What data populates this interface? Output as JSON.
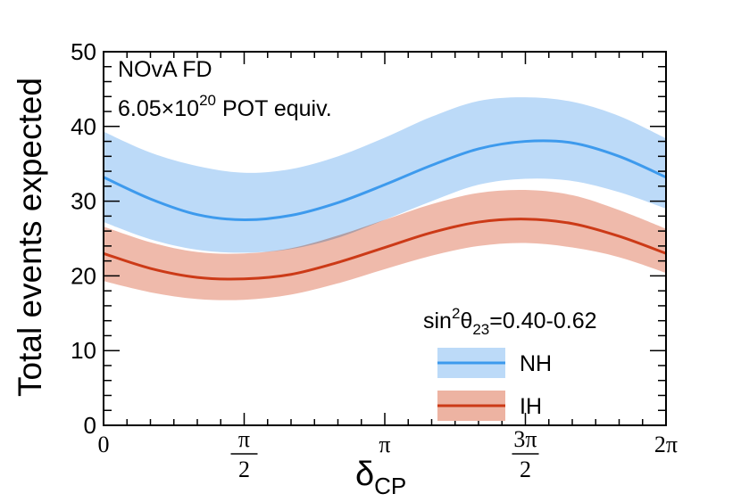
{
  "chart_data": {
    "type": "area",
    "xlabel": "δ",
    "xlabel_sub": "CP",
    "ylabel": "Total events expected",
    "xlim": [
      0,
      6.2832
    ],
    "ylim": [
      0,
      50
    ],
    "y_ticks": [
      0,
      10,
      20,
      30,
      40,
      50
    ],
    "x_ticks": [
      {
        "value": 0,
        "label": "0"
      },
      {
        "value": 1.5708,
        "numerator": "π",
        "denominator": "2"
      },
      {
        "value": 3.1416,
        "label": "π"
      },
      {
        "value": 4.7124,
        "numerator": "3π",
        "denominator": "2"
      },
      {
        "value": 6.2832,
        "label": "2π"
      }
    ],
    "annotations": {
      "line1": "NOvA FD",
      "line2_base": "6.05×10",
      "line2_exp": "20",
      "line2_rest": " POT equiv."
    },
    "legend": {
      "title_base": "sin",
      "title_sup": "2",
      "title_theta": "θ",
      "title_sub": "23",
      "title_rest": "=0.40-0.62",
      "placement": "bottom-right"
    },
    "grid": false,
    "series": [
      {
        "name": "NH",
        "color": "#3d9aed",
        "band_color": "#bcdaf8",
        "x": [
          0,
          0.5236,
          1.0472,
          1.5708,
          2.0944,
          2.618,
          3.1416,
          3.6652,
          4.1888,
          4.7124,
          5.236,
          5.7596,
          6.2832
        ],
        "y": [
          33.2,
          30.3,
          28.2,
          27.5,
          28.1,
          29.8,
          32.2,
          34.8,
          37.0,
          38.0,
          37.8,
          36.0,
          33.2
        ],
        "y_low": [
          27.2,
          24.9,
          23.5,
          23.1,
          23.6,
          25.1,
          27.5,
          30.0,
          32.2,
          33.0,
          32.7,
          31.2,
          29.0
        ],
        "y_high": [
          39.3,
          36.5,
          34.7,
          33.8,
          34.3,
          36.0,
          38.5,
          41.3,
          43.4,
          43.9,
          43.3,
          41.4,
          38.4
        ]
      },
      {
        "name": "IH",
        "color": "#cc3a17",
        "band_color": "#edb3a2",
        "x": [
          0,
          0.5236,
          1.0472,
          1.5708,
          2.0944,
          2.618,
          3.1416,
          3.6652,
          4.1888,
          4.7124,
          5.236,
          5.7596,
          6.2832
        ],
        "y": [
          23.0,
          21.0,
          19.8,
          19.6,
          20.2,
          21.8,
          23.8,
          25.8,
          27.2,
          27.6,
          27.0,
          25.3,
          23.0
        ],
        "y_low": [
          19.3,
          17.8,
          16.9,
          16.8,
          17.5,
          19.0,
          20.9,
          22.7,
          24.0,
          24.4,
          23.8,
          22.5,
          20.4
        ],
        "y_high": [
          26.6,
          24.5,
          23.2,
          23.0,
          23.7,
          25.4,
          27.5,
          29.6,
          31.1,
          31.5,
          30.8,
          28.8,
          26.3
        ]
      }
    ]
  }
}
